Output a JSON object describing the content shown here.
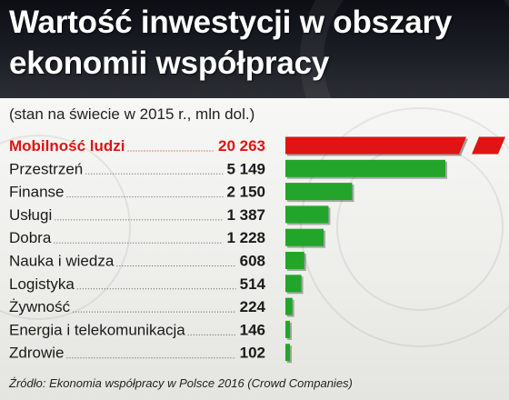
{
  "title": "Wartość inwestycji w obszary ekonomii współpracy",
  "subtitle": "(stan na świecie w 2015 r., mln dol.)",
  "source": "Źródło: Ekonomia współpracy w Polsce 2016 (Crowd Companies)",
  "colors": {
    "highlight": "#e01414",
    "bar": "#22a52a",
    "text": "#1a1a1a"
  },
  "chart_data": {
    "type": "bar",
    "orientation": "horizontal",
    "categories": [
      "Mobilność ludzi",
      "Przestrzeń",
      "Finanse",
      "Usługi",
      "Dobra",
      "Nauka i wiedza",
      "Logistyka",
      "Żywność",
      "Energia i telekomunikacja",
      "Zdrowie"
    ],
    "values": [
      20263,
      5149,
      2150,
      1387,
      1228,
      608,
      514,
      224,
      146,
      102
    ],
    "value_labels": [
      "20 263",
      "5 149",
      "2 150",
      "1 387",
      "1 228",
      "608",
      "514",
      "224",
      "146",
      "102"
    ],
    "highlighted_category": "Mobilność ludzi",
    "axis_break": true,
    "unit": "mln dol."
  }
}
